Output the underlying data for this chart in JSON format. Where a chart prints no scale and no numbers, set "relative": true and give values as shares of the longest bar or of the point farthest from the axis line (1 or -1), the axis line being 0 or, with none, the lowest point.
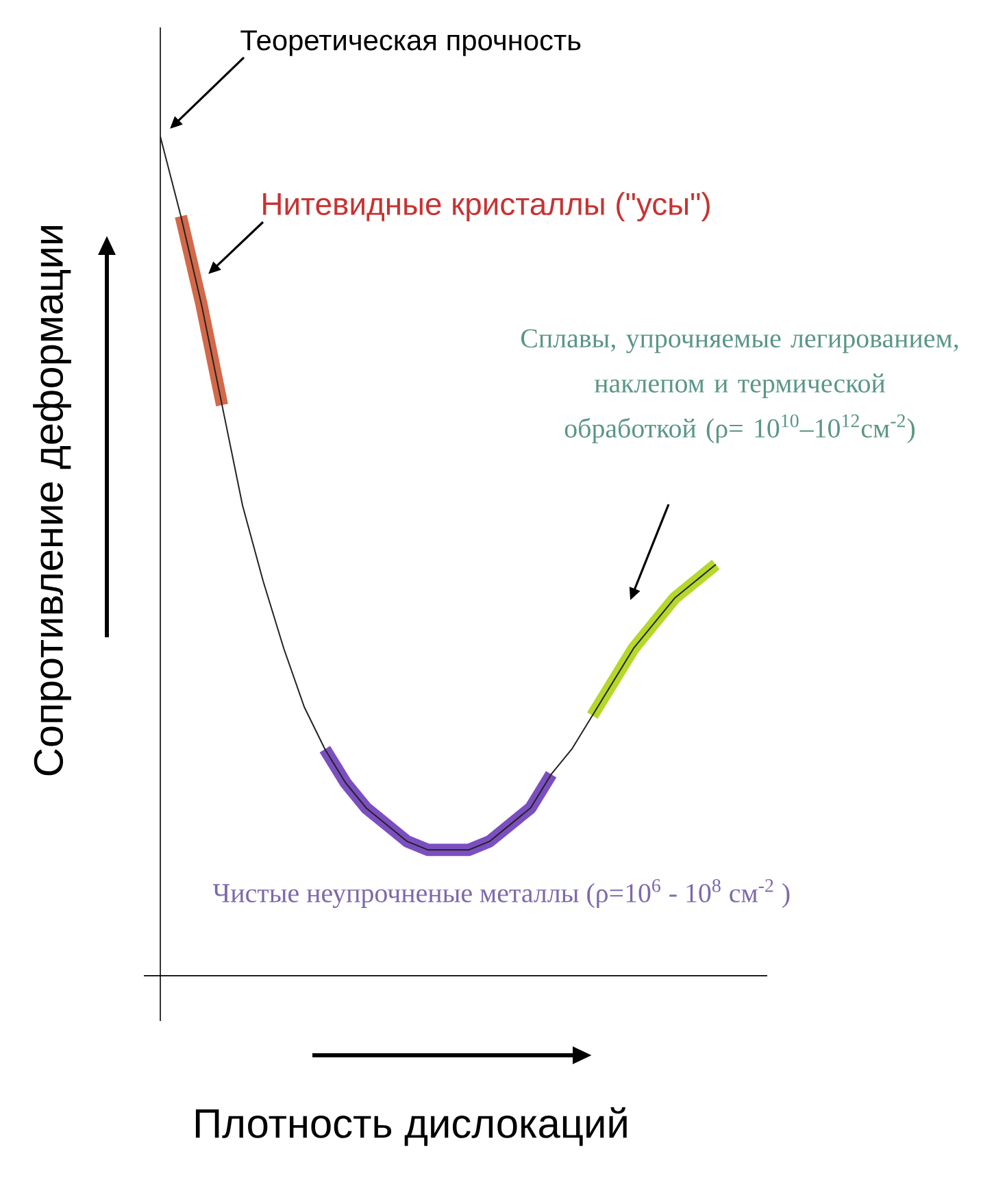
{
  "chart_data": {
    "type": "line",
    "relative": true,
    "xlabel": "Плотность дислокаций",
    "ylabel": "Сопротивление деформации",
    "categories": [
      null,
      null,
      null,
      null,
      null,
      null,
      null,
      null,
      null,
      null,
      null,
      null,
      null,
      null,
      null,
      null,
      null,
      null,
      null,
      null,
      null,
      null,
      null,
      null,
      null,
      null,
      null,
      null
    ],
    "series": [
      {
        "color": "#d2694a",
        "values": [
          null,
          0.905,
          0.8,
          0.68,
          null,
          null,
          null,
          null,
          null,
          null,
          null,
          null,
          null,
          null,
          null,
          null,
          null,
          null,
          null,
          null,
          null,
          null,
          null,
          null,
          null,
          null,
          null,
          null
        ]
      },
      {
        "color": "#7b4fc0",
        "values": [
          null,
          null,
          null,
          null,
          null,
          null,
          null,
          null,
          0.27,
          0.23,
          0.2,
          0.18,
          0.16,
          0.15,
          0.15,
          0.15,
          0.16,
          0.18,
          0.2,
          0.24,
          null,
          null,
          null,
          null,
          null,
          null,
          null,
          null
        ]
      },
      {
        "color": "#b5d82a",
        "values": [
          null,
          null,
          null,
          null,
          null,
          null,
          null,
          null,
          null,
          null,
          null,
          null,
          null,
          null,
          null,
          null,
          null,
          null,
          null,
          null,
          null,
          0.31,
          0.35,
          0.39,
          0.42,
          0.45,
          0.47,
          0.49
        ]
      },
      {
        "color": "#222222",
        "values": [
          1.0,
          0.905,
          0.8,
          0.68,
          0.56,
          0.47,
          0.39,
          0.32,
          0.27,
          0.23,
          0.2,
          0.18,
          0.16,
          0.15,
          0.15,
          0.15,
          0.16,
          0.18,
          0.2,
          0.24,
          0.27,
          0.31,
          0.35,
          0.39,
          0.42,
          0.45,
          0.47,
          0.49
        ]
      }
    ],
    "annotations": [
      "Теоретическая прочность",
      "Нитевидные кристаллы (\"усы\")",
      "Сплавы, упрочняемые легированием, наклепом и термической обработкой (ρ= 10$^{10}$–10$^{12}$см$^{-2}$)",
      "Чистые неупрочненые металлы (ρ=10$^{6}$ - 10$^{8}$ см$^{-2}$ )"
    ]
  }
}
